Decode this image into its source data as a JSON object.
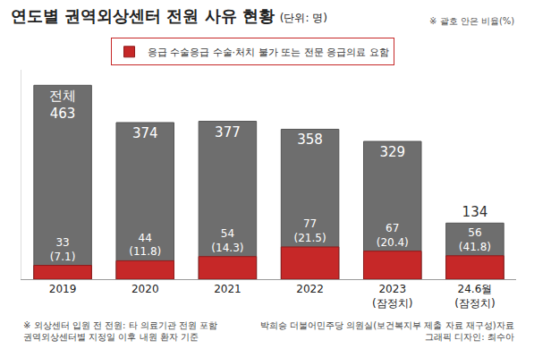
{
  "chart_data": {
    "type": "bar",
    "title": "연도별 권역외상센터 전원 사유 현황",
    "unit": "(단위: 명)",
    "note": "※ 괄호 안은 비율(%)",
    "categories": [
      "2019",
      "2020",
      "2021",
      "2022",
      "2023 (잠정치)",
      "24.6월 (잠정치)"
    ],
    "series": [
      {
        "name": "전체",
        "color": "#6e6e6e",
        "values": [
          463,
          374,
          377,
          358,
          329,
          134
        ],
        "value_labels": [
          "전체 463",
          "374",
          "377",
          "358",
          "329",
          "134"
        ]
      },
      {
        "name": "응급 수술응급 수술·처치 불가 또는 전문 응급의료 요함",
        "color": "#c62828",
        "values": [
          33,
          44,
          54,
          77,
          67,
          56
        ],
        "value_labels": [
          "33 (7.1)",
          "44 (11.8)",
          "54 (14.3)",
          "77 (21.5)",
          "67 (20.4)",
          "56 (41.8)"
        ]
      }
    ],
    "ylim": [
      0,
      500
    ],
    "yticks": [],
    "tick_labels": "x",
    "grid": false,
    "data_labels": true,
    "legend": "top",
    "footnotes": [
      "※ 외상센터 입원 전 전원: 타 의료기관 전원 포함",
      "권역외상센터별 지정일 이후 내원 환자 기준"
    ],
    "source": "박희승 더불어민주당 의원실(보건복지부 제출 자료 재구성)자료",
    "credit": "그래픽 디자인: 최수아"
  }
}
